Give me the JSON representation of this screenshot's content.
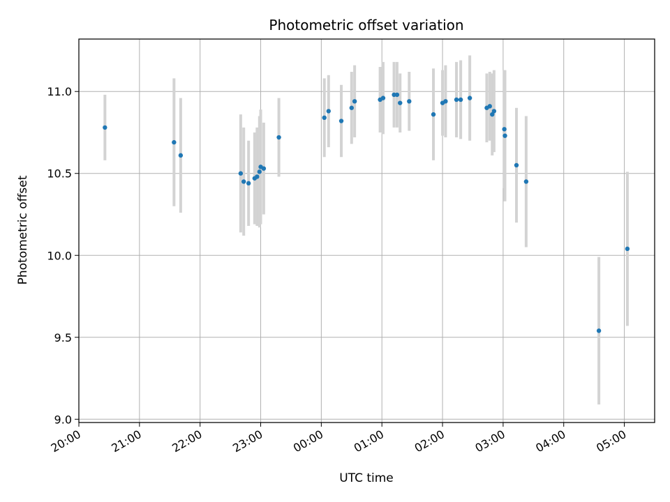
{
  "chart_data": {
    "type": "scatter",
    "title": "Photometric offset variation",
    "xlabel": "UTC time",
    "ylabel": "Photometric offset",
    "x_unit": "hours relative to 00:00 UTC",
    "xlim": [
      -4.0,
      5.5
    ],
    "ylim": [
      8.98,
      11.32
    ],
    "x_ticks": [
      -4,
      -3,
      -2,
      -1,
      0,
      1,
      2,
      3,
      4,
      5
    ],
    "x_tick_labels": [
      "20:00",
      "21:00",
      "22:00",
      "23:00",
      "00:00",
      "01:00",
      "02:00",
      "03:00",
      "04:00",
      "05:00"
    ],
    "y_ticks": [
      9.0,
      9.5,
      10.0,
      10.5,
      11.0
    ],
    "y_tick_labels": [
      "9.0",
      "9.5",
      "10.0",
      "10.5",
      "11.0"
    ],
    "grid": true,
    "colors": {
      "point": "#1f77b4",
      "errorbar": "#d3d3d3",
      "grid": "#b0b0b0"
    },
    "points": [
      {
        "x": -3.57,
        "y": 10.78,
        "err": 0.2
      },
      {
        "x": -2.43,
        "y": 10.69,
        "err": 0.39
      },
      {
        "x": -2.32,
        "y": 10.61,
        "err": 0.35
      },
      {
        "x": -1.33,
        "y": 10.5,
        "err": 0.36
      },
      {
        "x": -1.28,
        "y": 10.45,
        "err": 0.33
      },
      {
        "x": -1.2,
        "y": 10.44,
        "err": 0.26
      },
      {
        "x": -1.1,
        "y": 10.47,
        "err": 0.28
      },
      {
        "x": -1.06,
        "y": 10.48,
        "err": 0.3
      },
      {
        "x": -1.02,
        "y": 10.51,
        "err": 0.34
      },
      {
        "x": -1.0,
        "y": 10.54,
        "err": 0.35
      },
      {
        "x": -0.95,
        "y": 10.53,
        "err": 0.28
      },
      {
        "x": -0.7,
        "y": 10.72,
        "err": 0.24
      },
      {
        "x": 0.05,
        "y": 10.84,
        "err": 0.24
      },
      {
        "x": 0.12,
        "y": 10.88,
        "err": 0.22
      },
      {
        "x": 0.33,
        "y": 10.82,
        "err": 0.22
      },
      {
        "x": 0.5,
        "y": 10.9,
        "err": 0.22
      },
      {
        "x": 0.55,
        "y": 10.94,
        "err": 0.22
      },
      {
        "x": 0.97,
        "y": 10.95,
        "err": 0.2
      },
      {
        "x": 1.02,
        "y": 10.96,
        "err": 0.22
      },
      {
        "x": 1.2,
        "y": 10.98,
        "err": 0.2
      },
      {
        "x": 1.25,
        "y": 10.98,
        "err": 0.2
      },
      {
        "x": 1.3,
        "y": 10.93,
        "err": 0.18
      },
      {
        "x": 1.45,
        "y": 10.94,
        "err": 0.18
      },
      {
        "x": 1.85,
        "y": 10.86,
        "err": 0.28
      },
      {
        "x": 2.0,
        "y": 10.93,
        "err": 0.2
      },
      {
        "x": 2.05,
        "y": 10.94,
        "err": 0.22
      },
      {
        "x": 2.23,
        "y": 10.95,
        "err": 0.23
      },
      {
        "x": 2.3,
        "y": 10.95,
        "err": 0.24
      },
      {
        "x": 2.45,
        "y": 10.96,
        "err": 0.26
      },
      {
        "x": 2.73,
        "y": 10.9,
        "err": 0.21
      },
      {
        "x": 2.78,
        "y": 10.91,
        "err": 0.21
      },
      {
        "x": 2.82,
        "y": 10.86,
        "err": 0.25
      },
      {
        "x": 2.85,
        "y": 10.88,
        "err": 0.25
      },
      {
        "x": 3.02,
        "y": 10.77,
        "err": 0.36
      },
      {
        "x": 3.03,
        "y": 10.73,
        "err": 0.4
      },
      {
        "x": 3.22,
        "y": 10.55,
        "err": 0.35
      },
      {
        "x": 3.38,
        "y": 10.45,
        "err": 0.4
      },
      {
        "x": 4.58,
        "y": 9.54,
        "err": 0.45
      },
      {
        "x": 5.05,
        "y": 10.04,
        "err": 0.47
      }
    ]
  }
}
